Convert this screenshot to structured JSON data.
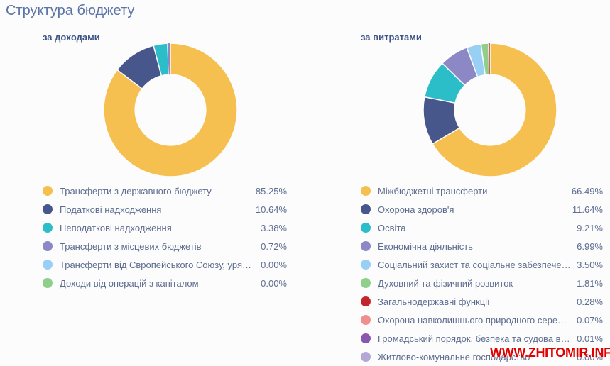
{
  "page": {
    "title": "Структура бюджету"
  },
  "watermark": {
    "text": "WWW.ZHITOMIR.INFO",
    "color": "#e00000"
  },
  "chart_data": [
    {
      "type": "pie",
      "title": "за доходами",
      "legend_position": "bottom",
      "donut_hole_ratio": 0.53,
      "labels": [
        "Трансферти з державного бюджету",
        "Податкові надходження",
        "Неподаткові надходження",
        "Трансферти з місцевих бюджетів",
        "Трансферти від Європейського Союзу, уря…",
        "Доходи від операцій з капіталом"
      ],
      "values": [
        85.25,
        10.64,
        3.38,
        0.72,
        0,
        0
      ],
      "display_values": [
        "85.25%",
        "10.64%",
        "3.38%",
        "0.72%",
        "0.00%",
        "0.00%"
      ],
      "colors": [
        "#f6c050",
        "#47578c",
        "#2bbec8",
        "#8c88c5",
        "#98cff5",
        "#8fcf8b"
      ]
    },
    {
      "type": "pie",
      "title": "за витратами",
      "legend_position": "bottom",
      "donut_hole_ratio": 0.53,
      "labels": [
        "Міжбюджетні трансферти",
        "Охорона здоров'я",
        "Освіта",
        "Економічна діяльність",
        "Соціальний захист та соціальне забезпече…",
        "Духовний та фізичний розвиток",
        "Загальнодержавні функції",
        "Охорона навколишнього природного сере…",
        "Громадський порядок, безпека та судова в…",
        "Житлово-комунальне господарство"
      ],
      "values": [
        66.49,
        11.64,
        9.21,
        6.99,
        3.5,
        1.81,
        0.28,
        0.07,
        0.01,
        0
      ],
      "display_values": [
        "66.49%",
        "11.64%",
        "9.21%",
        "6.99%",
        "3.50%",
        "1.81%",
        "0.28%",
        "0.07%",
        "0.01%",
        "0.00%"
      ],
      "colors": [
        "#f6c050",
        "#47578c",
        "#2bbec8",
        "#8c88c5",
        "#98cff5",
        "#8fcf8b",
        "#c2262c",
        "#f18e8e",
        "#8a57ae",
        "#b5a7d5"
      ]
    }
  ]
}
